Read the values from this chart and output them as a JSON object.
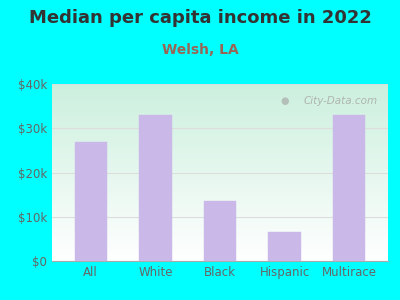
{
  "title": "Median per capita income in 2022",
  "subtitle": "Welsh, LA",
  "categories": [
    "All",
    "White",
    "Black",
    "Hispanic",
    "Multirace"
  ],
  "values": [
    27000,
    33000,
    13500,
    6500,
    33000
  ],
  "bar_color": "#c9b8e8",
  "bar_edge_color": "#c9b8e8",
  "title_color": "#333333",
  "subtitle_color": "#996655",
  "tick_label_color": "#666666",
  "background_outer": "#00ffff",
  "background_inner_topleft": "#cceedd",
  "background_inner_bottomright": "#ffffff",
  "ylim": [
    0,
    40000
  ],
  "yticks": [
    0,
    10000,
    20000,
    30000,
    40000
  ],
  "ytick_labels": [
    "$0",
    "$10k",
    "$20k",
    "$30k",
    "$40k"
  ],
  "watermark": "City-Data.com",
  "title_fontsize": 13,
  "subtitle_fontsize": 10,
  "tick_fontsize": 8.5,
  "grid_color": "#dddddd"
}
